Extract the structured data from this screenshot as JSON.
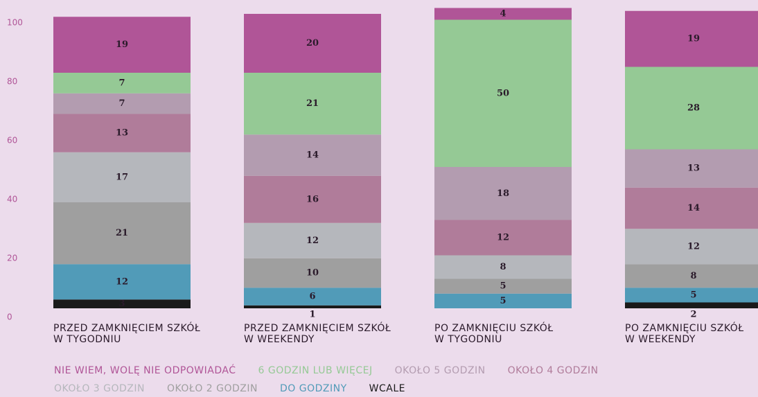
{
  "chart_data": {
    "type": "stacked_bar",
    "categories": [
      "PRZED ZAMKNIĘCIEM SZKÓŁ\nW TYGODNIU",
      "PRZED ZAMKNIĘCIEM SZKÓŁ\nW WEEKENDY",
      "PO ZAMKNIĘCIU SZKÓŁ\nW TYGODNIU",
      "PO ZAMKNIĘCIU SZKÓŁ\nW WEEKENDY"
    ],
    "series": [
      {
        "name": "NIE WIEM, WOLĘ NIE ODPOWIADAĆ",
        "color": "#b05597",
        "values": [
          19,
          20,
          4,
          19
        ]
      },
      {
        "name": "6 GODZIN LUB WIĘCEJ",
        "color": "#95c995",
        "values": [
          7,
          21,
          50,
          28
        ]
      },
      {
        "name": "OKOŁO 5 GODZIN",
        "color": "#b39cb0",
        "values": [
          7,
          14,
          18,
          13
        ]
      },
      {
        "name": "OKOŁO 4 GODZIN",
        "color": "#b07c9a",
        "values": [
          13,
          16,
          12,
          14
        ]
      },
      {
        "name": "OKOŁO 3 GODZIN",
        "color": "#b5b7bc",
        "values": [
          17,
          12,
          8,
          12
        ]
      },
      {
        "name": "OKOŁO 2 GODZIN",
        "color": "#9f9f9f",
        "values": [
          21,
          10,
          5,
          8
        ]
      },
      {
        "name": "DO GODZINY",
        "color": "#519bb8",
        "values": [
          12,
          6,
          5,
          5
        ]
      },
      {
        "name": "WCALE",
        "color": "#1a1a1a",
        "values": [
          3,
          1,
          null,
          2
        ]
      }
    ],
    "ylim": [
      0,
      100
    ],
    "yticks": [
      0,
      20,
      40,
      60,
      80,
      100
    ]
  }
}
